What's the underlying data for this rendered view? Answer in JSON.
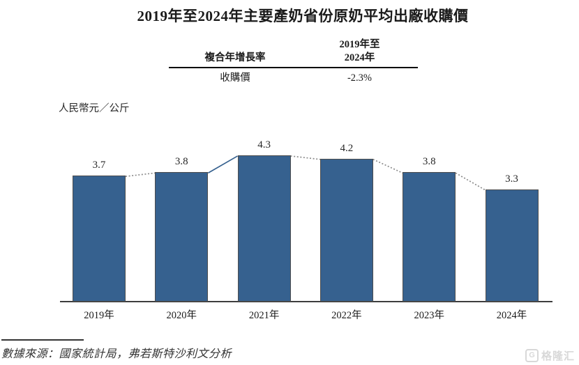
{
  "title": "2019年至2024年主要產奶省份原奶平均出廠收購價",
  "summary_table": {
    "metric_header": "複合年增長率",
    "period_header_line1": "2019年至",
    "period_header_line2": "2024年",
    "row_label": "收購價",
    "row_value": "-2.3%"
  },
  "unit_label": "人民幣元／公斤",
  "source_note": "數據來源：國家統計局，弗若斯特沙利文分析",
  "watermark": {
    "icon_letter": "G",
    "brand_text": "格隆汇"
  },
  "chart_data": {
    "type": "bar",
    "title": "2019年至2024年主要產奶省份原奶平均出廠收購價",
    "categories": [
      "2019年",
      "2020年",
      "2021年",
      "2022年",
      "2023年",
      "2024年"
    ],
    "values": [
      3.7,
      3.8,
      4.3,
      4.2,
      3.8,
      3.3
    ],
    "data_labels": [
      "3.7",
      "3.8",
      "4.3",
      "4.2",
      "3.8",
      "3.3"
    ],
    "xlabel": "",
    "ylabel": "人民幣元／公斤",
    "ylim": [
      0,
      4.4
    ],
    "grid": false,
    "legend": false,
    "axis_ticks_visible": false,
    "bar_color": "#36618f",
    "bar_border_color": "#4d4d4d",
    "connector_segments": [
      {
        "from": "2019年",
        "to": "2020年",
        "style": "dotted",
        "color": "#8c8c8c"
      },
      {
        "from": "2020年",
        "to": "2021年",
        "style": "solid",
        "color": "#36618f"
      },
      {
        "from": "2021年",
        "to": "2022年",
        "style": "dotted",
        "color": "#8c8c8c"
      },
      {
        "from": "2022年",
        "to": "2023年",
        "style": "dotted",
        "color": "#8c8c8c"
      },
      {
        "from": "2023年",
        "to": "2024年",
        "style": "dotted",
        "color": "#8c8c8c"
      }
    ]
  }
}
